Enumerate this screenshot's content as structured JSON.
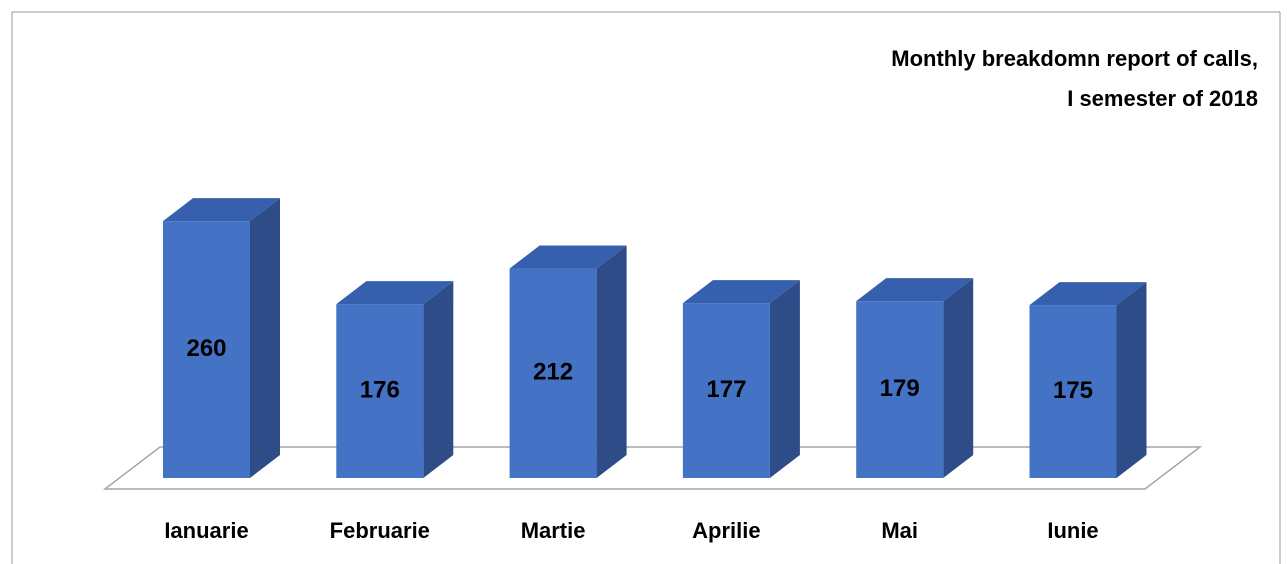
{
  "chart_data": {
    "type": "bar3d",
    "title": [
      "Monthly breakdomn report of calls,",
      "I semester of 2018"
    ],
    "categories": [
      "Ianuarie",
      "Februarie",
      "Martie",
      "Aprilie",
      "Mai",
      "Iunie"
    ],
    "values": [
      260,
      176,
      212,
      177,
      179,
      175
    ],
    "color": "#4472c4"
  }
}
